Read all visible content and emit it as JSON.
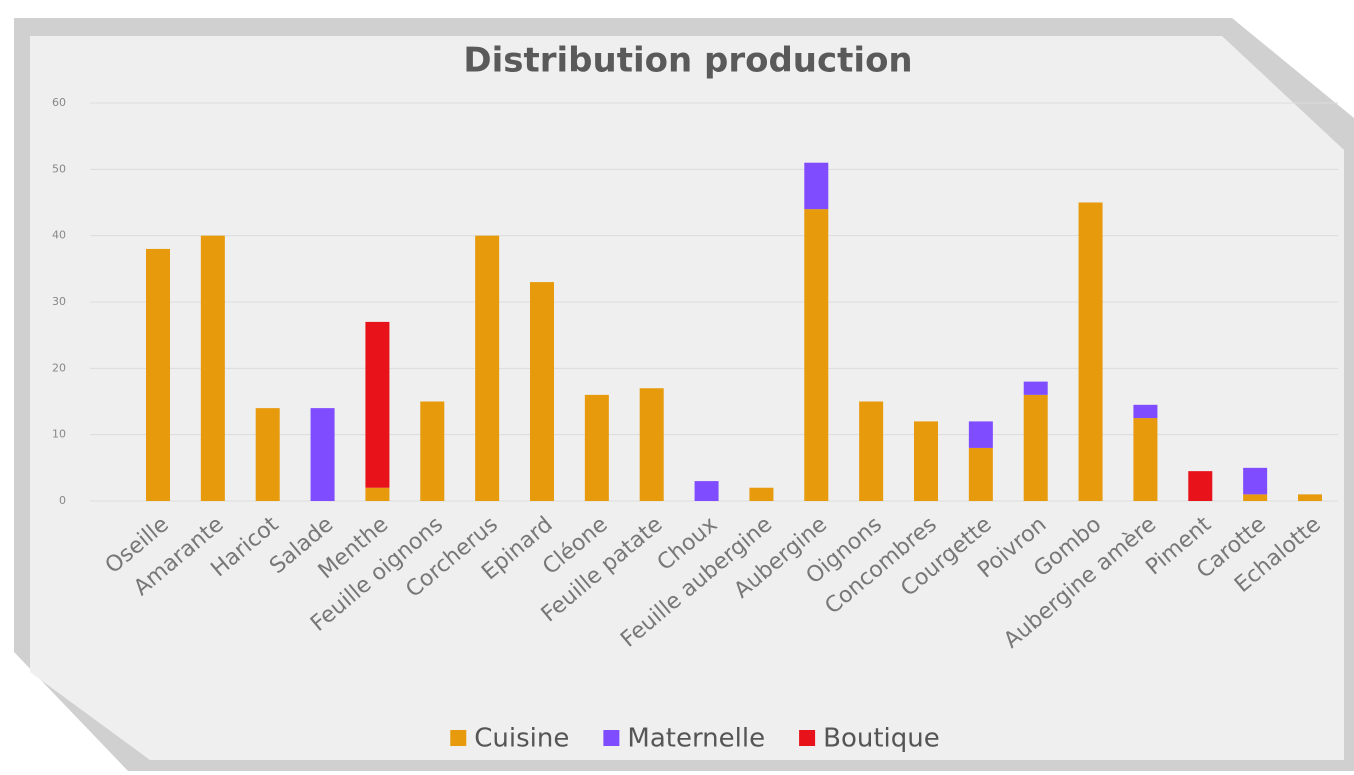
{
  "chart_data": {
    "type": "bar",
    "stacked": true,
    "title": "Distribution production",
    "categories": [
      "Oseille",
      "Amarante",
      "Haricot",
      "Salade",
      "Menthe",
      "Feuille oignons",
      "Corcherus",
      "Epinard",
      "Cléone",
      "Feuille patate",
      "Choux",
      "Feuille aubergine",
      "Aubergine",
      "Oignons",
      "Concombres",
      "Courgette",
      "Poivron",
      "Gombo",
      "Aubergine amère",
      "Piment",
      "Carotte",
      "Echalotte"
    ],
    "series": [
      {
        "name": "Cuisine",
        "color": "#e69a0c",
        "values": [
          38,
          40,
          14,
          0,
          2,
          15,
          40,
          33,
          16,
          17,
          0,
          2,
          44,
          15,
          12,
          8,
          16,
          45,
          12.5,
          0,
          1,
          1
        ]
      },
      {
        "name": "Maternelle",
        "color": "#7f4dff",
        "values": [
          0,
          0,
          0,
          14,
          0,
          0,
          0,
          0,
          0,
          0,
          3,
          0,
          7,
          0,
          0,
          4,
          2,
          0,
          2,
          0,
          4,
          0
        ]
      },
      {
        "name": "Boutique",
        "color": "#e8121a",
        "values": [
          0,
          0,
          0,
          0,
          25,
          0,
          0,
          0,
          0,
          0,
          0,
          0,
          0,
          0,
          0,
          0,
          0,
          0,
          0,
          4.5,
          0,
          0
        ]
      }
    ],
    "ylim": [
      0,
      60
    ],
    "yticks": [
      0,
      10,
      20,
      30,
      40,
      50,
      60
    ],
    "grid": true,
    "legend": "bottom"
  }
}
